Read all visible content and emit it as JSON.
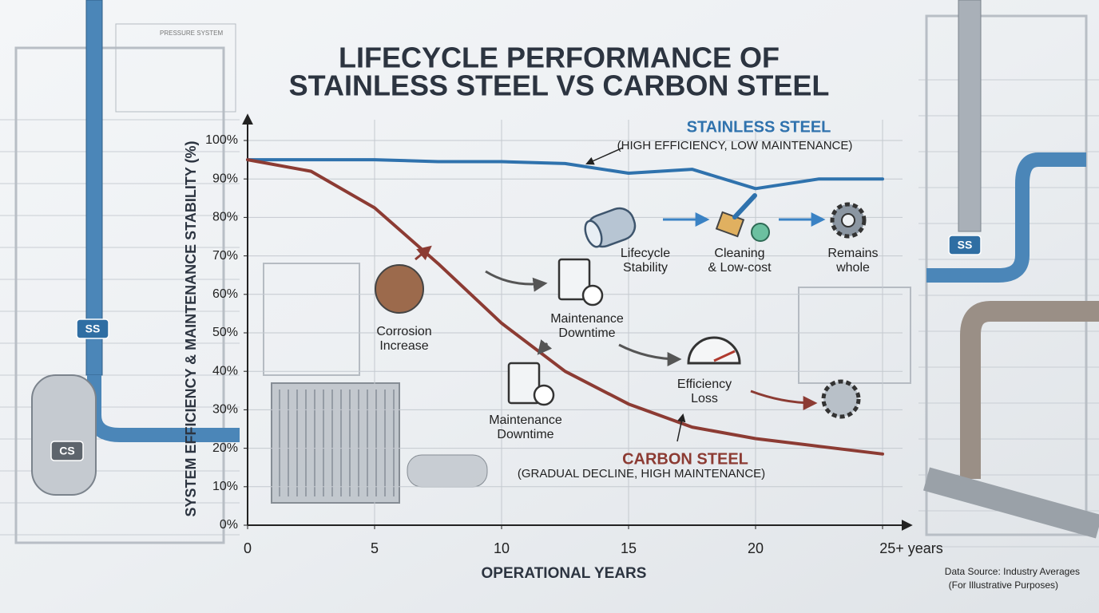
{
  "chart_data": {
    "type": "line",
    "title": [
      "LIFECYCLE PERFORMANCE OF",
      "STAINLESS STEEL VS CARBON STEEL"
    ],
    "x_label": "OPERATIONAL YEARS",
    "y_label": "SYSTEM EFFICIENCY & MAINTENANCE STABILITY (%)",
    "x": [
      0,
      2.5,
      5,
      7.5,
      10,
      12.5,
      15,
      17.5,
      20,
      22.5,
      25
    ],
    "series": [
      {
        "name": "STAINLESS STEEL",
        "description": "(HIGH EFFICIENCY, LOW MAINTENANCE)",
        "color": "#2f72ad",
        "values": [
          95,
          95,
          95,
          94.5,
          94.5,
          94,
          91.5,
          92.5,
          87.5,
          90,
          90
        ]
      },
      {
        "name": "CARBON STEEL",
        "description": "(GRADUAL DECLINE, HIGH MAINTENANCE)",
        "color": "#8c3b33",
        "values": [
          95,
          92,
          82.5,
          68,
          52.5,
          40,
          31.5,
          25.5,
          22.5,
          20.5,
          18.5
        ]
      }
    ],
    "xlim": [
      0,
      25
    ],
    "xticks": [
      0,
      5,
      10,
      15,
      20,
      {
        "value": 25,
        "label": "25+ years"
      }
    ],
    "ylim": [
      0,
      100
    ],
    "yticks": [
      {
        "value": 0,
        "label": "0%"
      },
      {
        "value": 10,
        "label": "10%"
      },
      {
        "value": 20,
        "label": "20%"
      },
      {
        "value": 30,
        "label": "30%"
      },
      {
        "value": 40,
        "label": "40%"
      },
      {
        "value": 50,
        "label": "50%"
      },
      {
        "value": 60,
        "label": "60%"
      },
      {
        "value": 70,
        "label": "70%"
      },
      {
        "value": 80,
        "label": "80%"
      },
      {
        "value": 90,
        "label": "90%"
      },
      {
        "value": 100,
        "label": "100%"
      }
    ],
    "grid": true,
    "annotations": [
      [
        "Lifecycle",
        "Stability"
      ],
      [
        "Cleaning",
        "& Low-cost"
      ],
      [
        "Remains",
        "whole"
      ],
      [
        "Corrosion",
        "Increase"
      ],
      [
        "Maintenance",
        "Downtime"
      ],
      [
        "Efficiency",
        "Loss"
      ],
      [
        "Maintenance",
        "Downtime"
      ]
    ],
    "badges": [
      "SS",
      "SS",
      "CS"
    ],
    "sketch_label": "PRESSURE SYSTEM",
    "source": [
      "Data Source: Industry Averages",
      "(For Illustrative Purposes)"
    ]
  }
}
